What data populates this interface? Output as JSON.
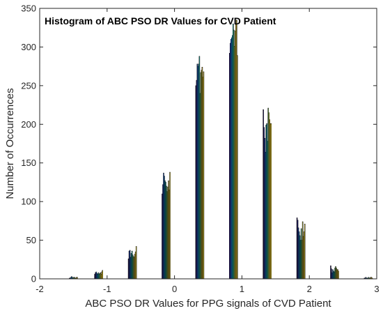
{
  "chart_data": {
    "type": "bar",
    "title": "Histogram of ABC PSO DR Values for CVD Patient",
    "xlabel": "ABC PSO DR Values for PPG signals of CVD Patient",
    "ylabel": "Number of Occurrences",
    "xlim": [
      -2,
      3
    ],
    "ylim": [
      0,
      350
    ],
    "xticks": [
      "-2",
      "-1",
      "0",
      "1",
      "2",
      "3"
    ],
    "yticks": [
      "0",
      "50",
      "100",
      "150",
      "200",
      "250",
      "300",
      "350"
    ],
    "grid": false,
    "legend": "none",
    "colormap": [
      "#2a1a6e",
      "#3338a8",
      "#1f5fd3",
      "#1d84d8",
      "#13a1c8",
      "#1cb2a8",
      "#48be83",
      "#86c45c",
      "#bec13b",
      "#e6c02f",
      "#f7d42a",
      "#f9e33c"
    ],
    "bin_width": 0.125,
    "bin_centers": [
      -1.5,
      -1.125,
      -0.625,
      -0.125,
      0.375,
      0.875,
      1.375,
      1.875,
      2.375,
      2.875
    ],
    "series_per_bin": 12,
    "values": [
      [
        1,
        1,
        2,
        3,
        2,
        1,
        2,
        2,
        1,
        1,
        2,
        2
      ],
      [
        6,
        8,
        9,
        7,
        6,
        8,
        6,
        7,
        8,
        6,
        9,
        11
      ],
      [
        26,
        36,
        37,
        28,
        33,
        36,
        31,
        29,
        28,
        32,
        35,
        42
      ],
      [
        110,
        122,
        137,
        133,
        127,
        125,
        120,
        113,
        119,
        127,
        115,
        138
      ],
      [
        250,
        257,
        278,
        275,
        278,
        288,
        240,
        267,
        270,
        274,
        261,
        268
      ],
      [
        292,
        305,
        310,
        312,
        315,
        330,
        322,
        301,
        321,
        329,
        335,
        289
      ],
      [
        219,
        196,
        182,
        164,
        199,
        201,
        178,
        221,
        215,
        206,
        201,
        201
      ],
      [
        79,
        76,
        66,
        61,
        56,
        50,
        65,
        50,
        74,
        55,
        61,
        71
      ],
      [
        17,
        13,
        8,
        12,
        10,
        9,
        14,
        16,
        14,
        12,
        12,
        10
      ],
      [
        1,
        1,
        2,
        1,
        1,
        1,
        2,
        1,
        1,
        2,
        2,
        1
      ]
    ]
  }
}
